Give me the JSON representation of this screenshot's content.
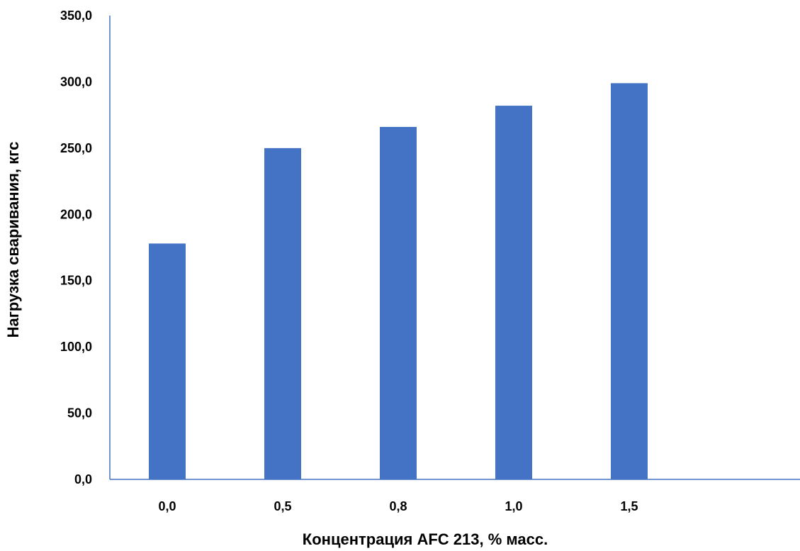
{
  "chart_data": {
    "type": "bar",
    "categories": [
      "0,0",
      "0,5",
      "0,8",
      "1,0",
      "1,5"
    ],
    "values": [
      178,
      250,
      266,
      282,
      299
    ],
    "xlabel": "Концентрация AFC 213, % масс.",
    "ylabel": "Нагрузка сваривания, кгс",
    "ylim": [
      0,
      350
    ],
    "yticks": [
      "0,0",
      "50,0",
      "100,0",
      "150,0",
      "200,0",
      "250,0",
      "300,0",
      "350,0"
    ],
    "grid": false,
    "legend": "none",
    "colors": {
      "bar": "#4472C4",
      "axis": "#4472C4"
    }
  }
}
